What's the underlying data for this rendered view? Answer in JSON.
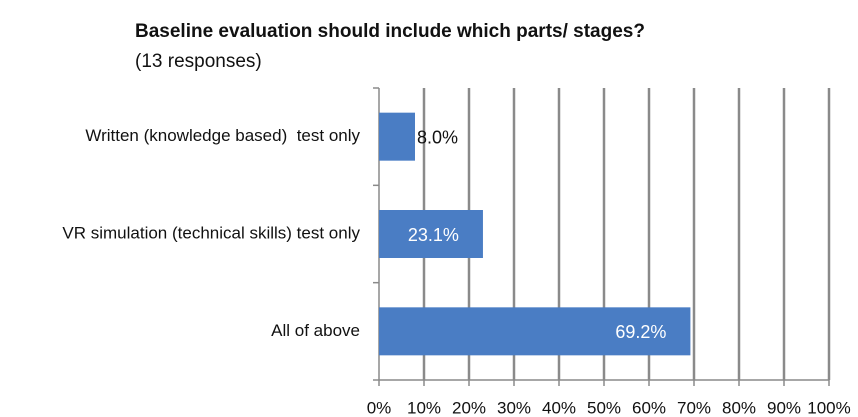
{
  "chart_data": {
    "type": "bar",
    "orientation": "horizontal",
    "title": "Baseline evaluation should include which parts/ stages?",
    "subtitle": "(13 responses)",
    "categories": [
      "Written (knowledge based)  test only",
      "VR simulation (technical skills) test only",
      "All of above"
    ],
    "values": [
      8.0,
      23.1,
      69.2
    ],
    "value_labels": [
      "8.0%",
      "23.1%",
      "69.2%"
    ],
    "color": "#4a7dc4",
    "xlim": [
      0,
      100
    ],
    "xticks": [
      {
        "value": 0,
        "label": "0%"
      },
      {
        "value": 10,
        "label": "10%"
      },
      {
        "value": 20,
        "label": "20%"
      },
      {
        "value": 30,
        "label": "30%"
      },
      {
        "value": 40,
        "label": "40%"
      },
      {
        "value": 50,
        "label": "50%"
      },
      {
        "value": 60,
        "label": "60%"
      },
      {
        "value": 70,
        "label": "70%"
      },
      {
        "value": 80,
        "label": "80%"
      },
      {
        "value": 90,
        "label": "90%"
      },
      {
        "value": 100,
        "label": "100%"
      }
    ],
    "grid": true
  }
}
